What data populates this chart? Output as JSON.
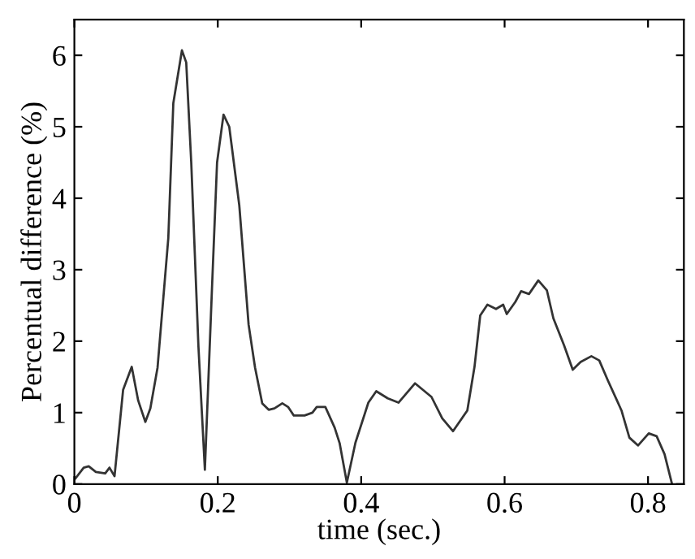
{
  "chart_data": {
    "type": "line",
    "xlabel": "time (sec.)",
    "ylabel": "Percentual difference (%)",
    "xlim": [
      0,
      0.85
    ],
    "ylim": [
      0,
      6.5
    ],
    "xticks": [
      0,
      0.2,
      0.4,
      0.6,
      0.8
    ],
    "yticks": [
      0,
      1,
      2,
      3,
      4,
      5,
      6
    ],
    "grid": false,
    "marker": "none",
    "line_style": "solid",
    "series": [
      {
        "color": "#333333",
        "x": [
          0.0015,
          0.013,
          0.02,
          0.03,
          0.043,
          0.049,
          0.056,
          0.068,
          0.08,
          0.089,
          0.099,
          0.106,
          0.116,
          0.131,
          0.138,
          0.15,
          0.156,
          0.163,
          0.173,
          0.182,
          0.192,
          0.199,
          0.208,
          0.216,
          0.23,
          0.243,
          0.252,
          0.262,
          0.271,
          0.279,
          0.29,
          0.298,
          0.306,
          0.321,
          0.332,
          0.338,
          0.35,
          0.363,
          0.37,
          0.38,
          0.392,
          0.41,
          0.421,
          0.437,
          0.452,
          0.475,
          0.498,
          0.513,
          0.528,
          0.548,
          0.558,
          0.566,
          0.576,
          0.588,
          0.598,
          0.603,
          0.615,
          0.623,
          0.634,
          0.647,
          0.659,
          0.668,
          0.683,
          0.695,
          0.706,
          0.721,
          0.732,
          0.744,
          0.763,
          0.774,
          0.786,
          0.801,
          0.812,
          0.823,
          0.833
        ],
        "values": [
          0.08,
          0.23,
          0.25,
          0.17,
          0.15,
          0.23,
          0.11,
          1.32,
          1.64,
          1.17,
          0.87,
          1.06,
          1.63,
          3.44,
          5.33,
          6.07,
          5.9,
          4.5,
          1.93,
          0.2,
          2.76,
          4.5,
          5.17,
          5.0,
          3.9,
          2.23,
          1.63,
          1.13,
          1.04,
          1.06,
          1.13,
          1.08,
          0.96,
          0.96,
          1.0,
          1.08,
          1.08,
          0.79,
          0.57,
          0.02,
          0.58,
          1.14,
          1.3,
          1.2,
          1.14,
          1.41,
          1.22,
          0.92,
          0.74,
          1.03,
          1.64,
          2.36,
          2.51,
          2.45,
          2.51,
          2.38,
          2.55,
          2.7,
          2.66,
          2.85,
          2.71,
          2.32,
          1.94,
          1.6,
          1.71,
          1.79,
          1.73,
          1.45,
          1.03,
          0.65,
          0.54,
          0.71,
          0.67,
          0.42,
          0.02
        ]
      }
    ]
  }
}
